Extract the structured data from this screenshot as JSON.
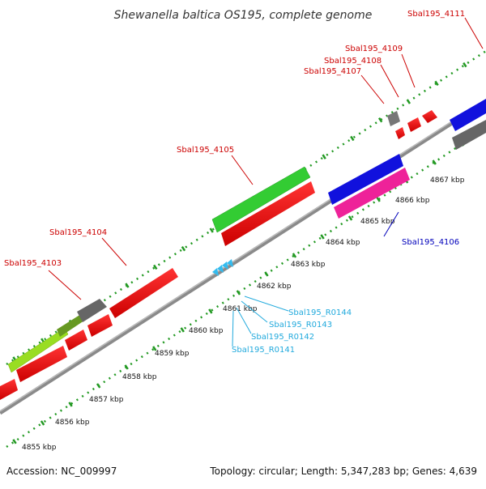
{
  "title": "Shewanella baltica OS195, complete genome",
  "footer": {
    "accession": "Accession: NC_009997",
    "stats": "Topology: circular; Length: 5,347,283 bp; Genes: 4,639"
  },
  "colors": {
    "cds_red": "#ff1111",
    "cds_green": "#33cc33",
    "cds_lime": "#99dd22",
    "cds_olive": "#669922",
    "cds_gray": "#666666",
    "cds_blue": "#1111dd",
    "cds_magenta": "#ee2299",
    "rna_cyan": "#33bbee",
    "label_red": "#cc0000",
    "label_blue": "#0000bb",
    "label_cyan": "#22aadd",
    "axis_green": "#229922",
    "backbone": "#888888"
  },
  "ruler": {
    "unit": "kbp",
    "ticks": [
      "4855 kbp",
      "4856 kbp",
      "4857 kbp",
      "4858 kbp",
      "4859 kbp",
      "4860 kbp",
      "4861 kbp",
      "4862 kbp",
      "4863 kbp",
      "4864 kbp",
      "4865 kbp",
      "4866 kbp",
      "4867 kbp"
    ]
  },
  "genes": [
    {
      "label": "Sbal195_4103",
      "color": "cds_red"
    },
    {
      "label": "Sbal195_4104",
      "color": "cds_red"
    },
    {
      "label": "Sbal195_4105",
      "color": "cds_red"
    },
    {
      "label": "Sbal195_4106",
      "color": "cds_blue"
    },
    {
      "label": "Sbal195_4107",
      "color": "cds_red"
    },
    {
      "label": "Sbal195_4108",
      "color": "cds_red"
    },
    {
      "label": "Sbal195_4109",
      "color": "cds_red"
    },
    {
      "label": "Sbal195_4111",
      "color": "cds_red"
    },
    {
      "label": "Sbal195_R0141",
      "color": "rna_cyan"
    },
    {
      "label": "Sbal195_R0142",
      "color": "rna_cyan"
    },
    {
      "label": "Sbal195_R0143",
      "color": "rna_cyan"
    },
    {
      "label": "Sbal195_R0144",
      "color": "rna_cyan"
    }
  ]
}
